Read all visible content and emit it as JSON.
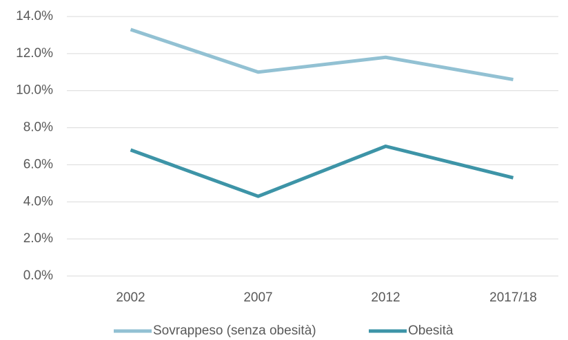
{
  "chart_data": {
    "type": "line",
    "categories": [
      "2002",
      "2007",
      "2012",
      "2017/18"
    ],
    "series": [
      {
        "name": "Sovrappeso (senza obesità)",
        "color": "#92c1d3",
        "values": [
          13.3,
          11.0,
          11.8,
          10.6
        ]
      },
      {
        "name": "Obesità",
        "color": "#3d94a7",
        "values": [
          6.8,
          4.3,
          7.0,
          5.3
        ]
      }
    ],
    "ylim": [
      0,
      14
    ],
    "yticks": [
      {
        "value": 0,
        "label": "0.0%"
      },
      {
        "value": 2,
        "label": "2.0%"
      },
      {
        "value": 4,
        "label": "4.0%"
      },
      {
        "value": 6,
        "label": "6.0%"
      },
      {
        "value": 8,
        "label": "8.0%"
      },
      {
        "value": 10,
        "label": "10.0%"
      },
      {
        "value": 12,
        "label": "12.0%"
      },
      {
        "value": 14,
        "label": "14.0%"
      }
    ],
    "grid": true,
    "legend": "bottom"
  }
}
